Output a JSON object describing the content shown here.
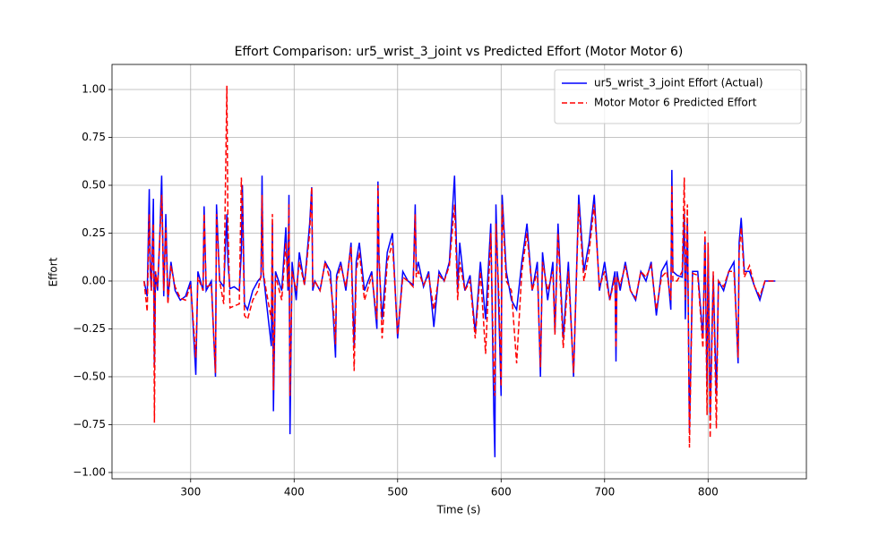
{
  "chart_data": {
    "type": "line",
    "title": "Effort Comparison: ur5_wrist_3_joint vs Predicted Effort (Motor Motor 6)",
    "x_label": "Time (s)",
    "y_label": "Effort",
    "xlim": [
      224,
      895
    ],
    "ylim": [
      -1.033,
      1.131
    ],
    "xticks": [
      300,
      400,
      500,
      600,
      700,
      800
    ],
    "yticks": [
      {
        "value": -1,
        "label": "−1.00"
      },
      {
        "value": -0.75,
        "label": "−0.75"
      },
      {
        "value": -0.5,
        "label": "−0.50"
      },
      {
        "value": -0.25,
        "label": "−0.25"
      },
      {
        "value": 0,
        "label": "0.00"
      },
      {
        "value": 0.25,
        "label": "0.25"
      },
      {
        "value": 0.5,
        "label": "0.50"
      },
      {
        "value": 0.75,
        "label": "0.75"
      },
      {
        "value": 1,
        "label": "1.00"
      }
    ],
    "grid": true,
    "legend": "upper right",
    "x": [
      255,
      258,
      260,
      261,
      262,
      264,
      265,
      266,
      268,
      270,
      272,
      274,
      276,
      278,
      281,
      285,
      290,
      295,
      300,
      305,
      307,
      312,
      313,
      315,
      320,
      324,
      325,
      328,
      332,
      335,
      336,
      338,
      342,
      347,
      349,
      350,
      352,
      355,
      360,
      365,
      368,
      369,
      370,
      373,
      378,
      379,
      380,
      382,
      388,
      392,
      394,
      395,
      396,
      398,
      402,
      405,
      410,
      415,
      417,
      418,
      420,
      425,
      430,
      435,
      438,
      440,
      441,
      445,
      450,
      455,
      458,
      460,
      463,
      468,
      475,
      480,
      481,
      482,
      485,
      490,
      495,
      500,
      505,
      510,
      515,
      517,
      518,
      520,
      525,
      530,
      535,
      540,
      545,
      550,
      555,
      558,
      560,
      565,
      570,
      575,
      580,
      585,
      590,
      593,
      594,
      595,
      598,
      600,
      601,
      605,
      610,
      615,
      620,
      625,
      630,
      635,
      638,
      640,
      645,
      650,
      652,
      655,
      660,
      665,
      670,
      675,
      680,
      685,
      690,
      695,
      700,
      705,
      710,
      711,
      712,
      715,
      720,
      725,
      730,
      735,
      740,
      745,
      750,
      755,
      760,
      764,
      765,
      766,
      770,
      775,
      777,
      778,
      780,
      782,
      785,
      790,
      795,
      797,
      799,
      800,
      802,
      805,
      808,
      810,
      815,
      820,
      825,
      829,
      830,
      832,
      835,
      840,
      845,
      850,
      855,
      860,
      865
    ],
    "series": [
      {
        "name": "ur5_wrist_3_joint Effort (Actual)",
        "color": "#0000ff",
        "linestyle": "solid",
        "values": [
          0,
          -0.08,
          0.48,
          0.05,
          -0.05,
          0.43,
          -0.44,
          0.05,
          -0.05,
          0.2,
          0.55,
          -0.08,
          0.35,
          -0.1,
          0.1,
          -0.05,
          -0.1,
          -0.08,
          0,
          -0.49,
          0.05,
          -0.05,
          0.39,
          -0.05,
          0,
          -0.5,
          0.4,
          0,
          -0.03,
          0.35,
          0.1,
          -0.04,
          -0.03,
          -0.05,
          0.15,
          0.5,
          -0.12,
          -0.15,
          -0.05,
          0,
          0.02,
          0.55,
          0.05,
          -0.1,
          -0.34,
          0.3,
          -0.68,
          0.05,
          -0.05,
          0.28,
          -0.05,
          0.45,
          -0.8,
          0.1,
          -0.1,
          0.15,
          -0.02,
          0.3,
          0.49,
          -0.05,
          0,
          -0.05,
          0.1,
          0.05,
          -0.2,
          -0.4,
          0.03,
          0.1,
          -0.05,
          0.2,
          -0.35,
          0.1,
          0.2,
          -0.05,
          0.05,
          -0.25,
          0.52,
          0.1,
          -0.2,
          0.15,
          0.25,
          -0.3,
          0.05,
          0,
          -0.02,
          0.4,
          0.05,
          0.1,
          -0.03,
          0.05,
          -0.24,
          0.05,
          0,
          0.1,
          0.55,
          -0.05,
          0.2,
          -0.05,
          0.03,
          -0.27,
          0.1,
          -0.2,
          0.3,
          -0.7,
          -0.92,
          0.4,
          -0.2,
          -0.6,
          0.45,
          0.05,
          -0.1,
          -0.15,
          0.1,
          0.3,
          -0.05,
          0.1,
          -0.5,
          0.15,
          -0.1,
          0.1,
          -0.27,
          0.3,
          -0.3,
          0.1,
          -0.5,
          0.45,
          0.05,
          0.2,
          0.45,
          -0.05,
          0.1,
          -0.1,
          0.05,
          -0.42,
          0.05,
          -0.05,
          0.1,
          -0.05,
          -0.1,
          0.05,
          0,
          0.1,
          -0.18,
          0.05,
          0.1,
          -0.15,
          0.58,
          0.05,
          0.03,
          0.02,
          0.35,
          -0.2,
          0.32,
          -0.78,
          0.05,
          0.05,
          -0.3,
          0.22,
          -0.55,
          0.2,
          -0.7,
          0.03,
          -0.6,
          0,
          -0.05,
          0.05,
          0.1,
          -0.43,
          0.2,
          0.33,
          0.05,
          0.05,
          -0.03,
          -0.1,
          0,
          0,
          0
        ]
      },
      {
        "name": "Motor Motor 6 Predicted Effort",
        "color": "#ff0000",
        "linestyle": "dashed",
        "values": [
          0,
          -0.16,
          0.35,
          0.1,
          -0.05,
          0.3,
          -0.74,
          0.05,
          -0.03,
          0.2,
          0.45,
          -0.05,
          0.28,
          -0.12,
          0.08,
          -0.03,
          -0.09,
          -0.1,
          -0.02,
          -0.4,
          0.02,
          -0.05,
          0.35,
          -0.03,
          -0.02,
          -0.48,
          0.35,
          0,
          -0.12,
          1.02,
          0.3,
          -0.14,
          -0.13,
          -0.12,
          0.54,
          0.4,
          -0.18,
          -0.2,
          -0.1,
          -0.05,
          0.03,
          0.45,
          0.05,
          -0.05,
          -0.2,
          0.35,
          -0.57,
          0.03,
          -0.1,
          0.2,
          -0.03,
          0.4,
          -0.6,
          0.05,
          -0.05,
          0.1,
          -0.02,
          0.25,
          0.49,
          -0.03,
          0,
          -0.05,
          0.1,
          0,
          -0.15,
          -0.33,
          0,
          0.08,
          -0.03,
          0.18,
          -0.47,
          0.05,
          0.15,
          -0.1,
          0.03,
          -0.2,
          0.5,
          0.15,
          -0.3,
          0.1,
          0.2,
          -0.28,
          0.02,
          0,
          -0.03,
          0.35,
          0.02,
          0.05,
          -0.02,
          0.03,
          -0.15,
          0.03,
          0,
          0.08,
          0.4,
          -0.1,
          0.1,
          -0.05,
          0,
          -0.3,
          0.05,
          -0.38,
          0.25,
          -0.5,
          -0.6,
          0.3,
          -0.1,
          -0.55,
          0.4,
          0,
          -0.05,
          -0.43,
          0.05,
          0.25,
          -0.05,
          0.05,
          -0.45,
          0.1,
          -0.05,
          0.05,
          -0.28,
          0.25,
          -0.35,
          0.05,
          -0.48,
          0.4,
          0,
          0.15,
          0.4,
          -0.03,
          0.05,
          -0.1,
          0.02,
          -0.35,
          0.02,
          -0.02,
          0.08,
          -0.05,
          -0.09,
          0.05,
          0.02,
          0.08,
          -0.15,
          0.02,
          0.05,
          -0.1,
          0.5,
          0,
          0,
          0.05,
          0.54,
          -0.1,
          0.4,
          -0.87,
          0.04,
          0.03,
          -0.35,
          0.26,
          -0.7,
          0.2,
          -0.82,
          0.05,
          -0.77,
          0,
          -0.03,
          0.05,
          0.05,
          -0.4,
          0.15,
          0.28,
          0.02,
          0.08,
          -0.03,
          -0.08,
          0,
          0,
          0
        ]
      }
    ]
  }
}
